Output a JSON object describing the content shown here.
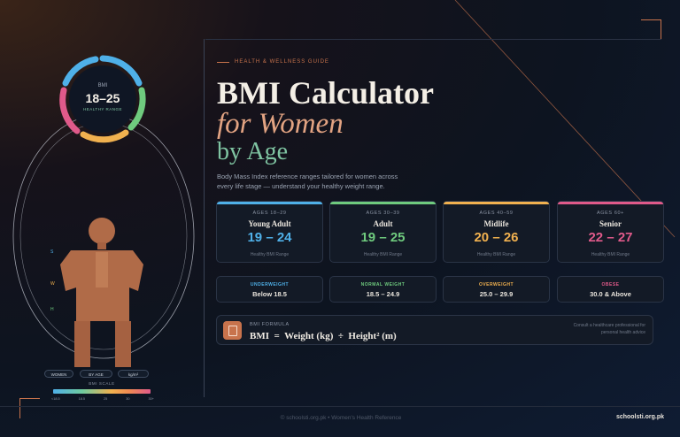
{
  "eyebrow": "HEALTH & WELLNESS GUIDE",
  "title": {
    "line1": "BMI Calculator",
    "line2": "for Women",
    "line3": "by Age"
  },
  "description": "Body Mass Index reference ranges tailored for women across every life stage — understand your healthy weight range.",
  "ring": {
    "label": "BMI",
    "value": "18–25",
    "caption": "HEALTHY RANGE"
  },
  "figure_side_letters": [
    "S",
    "W",
    "H"
  ],
  "pills": [
    "WOMEN",
    "BY AGE",
    "kg/m²"
  ],
  "scale": {
    "label": "BMI SCALE",
    "ticks": [
      "<18.5",
      "18.5",
      "25",
      "30",
      "30+"
    ]
  },
  "age_cards": [
    {
      "age": "AGES 18–29",
      "name": "Young Adult",
      "range": "19 – 24",
      "sub": "Healthy BMI Range",
      "color": "#4fb0e8"
    },
    {
      "age": "AGES 30–39",
      "name": "Adult",
      "range": "19 – 25",
      "sub": "Healthy BMI Range",
      "color": "#6fcb7e"
    },
    {
      "age": "AGES 40–59",
      "name": "Midlife",
      "range": "20 – 26",
      "sub": "Healthy BMI Range",
      "color": "#f1b14f"
    },
    {
      "age": "AGES 60+",
      "name": "Senior",
      "range": "22 – 27",
      "sub": "Healthy BMI Range",
      "color": "#e05a8a"
    }
  ],
  "categories": [
    {
      "label": "UNDERWEIGHT",
      "value": "Below 18.5",
      "color": "#4fb0e8"
    },
    {
      "label": "NORMAL WEIGHT",
      "value": "18.5 – 24.9",
      "color": "#6fcb7e"
    },
    {
      "label": "OVERWEIGHT",
      "value": "25.0 – 29.9",
      "color": "#f1b14f"
    },
    {
      "label": "OBESE",
      "value": "30.0 & Above",
      "color": "#e05a8a"
    }
  ],
  "formula": {
    "label": "BMI FORMULA",
    "equation": "BMI  =  Weight (kg)  ÷  Height² (m)",
    "note": "Consult a healthcare professional for personal health advice"
  },
  "footer": {
    "center": "© schoolsti.org.pk  •  Women's Health Reference",
    "right": "schoolsti.org.pk"
  },
  "colors": {
    "accent": "#c8734c",
    "blue": "#4fb0e8",
    "green": "#6fcb7e",
    "amber": "#f1b14f",
    "pink": "#e05a8a"
  }
}
